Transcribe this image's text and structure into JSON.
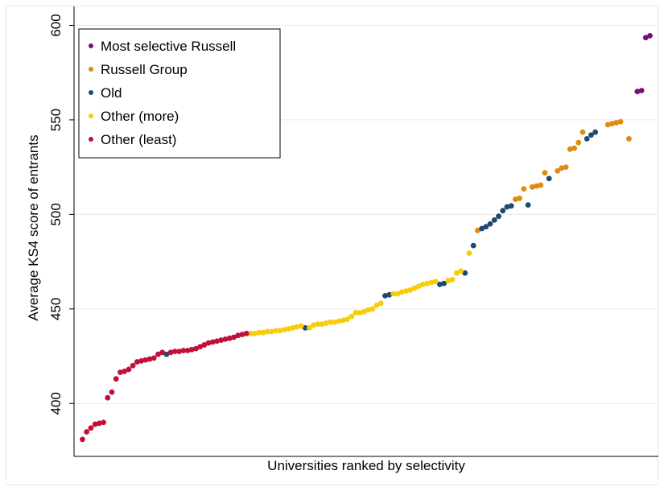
{
  "chart_data": {
    "type": "scatter",
    "xlabel": "Universities ranked by selectivity",
    "ylabel": "Average KS4 score of entrants",
    "ylim": [
      372,
      610
    ],
    "yticks": [
      400,
      450,
      500,
      550,
      600
    ],
    "grid": true,
    "legend_position": "top-left",
    "series": [
      {
        "name": "Most selective Russell",
        "color": "#7b0a7e",
        "x": [
          132,
          133,
          134,
          135
        ],
        "y": [
          565,
          565.5,
          593.5,
          594.5
        ]
      },
      {
        "name": "Russell Group",
        "color": "#e08a10",
        "x": [
          94,
          103,
          104,
          105,
          107,
          108,
          109,
          110,
          113,
          114,
          115,
          116,
          117,
          118,
          119,
          125,
          126,
          127,
          128,
          130
        ],
        "y": [
          491.5,
          508,
          508.5,
          513.5,
          514.5,
          515,
          515.5,
          522,
          523,
          524.5,
          525,
          534.5,
          535,
          538,
          543.5,
          547.5,
          548,
          548.5,
          549,
          540
        ]
      },
      {
        "name": "Old",
        "color": "#1c4a70",
        "x": [
          20,
          53,
          72,
          73,
          85,
          86,
          91,
          93,
          95,
          96,
          97,
          98,
          99,
          100,
          101,
          102,
          106,
          111,
          120,
          121,
          122
        ],
        "y": [
          426,
          440,
          457,
          457.5,
          463,
          463.5,
          469,
          483.5,
          492.5,
          493.5,
          495,
          497,
          499,
          502,
          504,
          504.5,
          505,
          519,
          540,
          542,
          543.5
        ]
      },
      {
        "name": "Other (more)",
        "color": "#f7cd0b",
        "x": [
          40,
          41,
          42,
          43,
          44,
          45,
          46,
          47,
          48,
          49,
          50,
          51,
          52,
          54,
          55,
          56,
          57,
          58,
          59,
          60,
          61,
          62,
          63,
          64,
          65,
          66,
          67,
          68,
          69,
          70,
          71,
          74,
          75,
          76,
          77,
          78,
          79,
          80,
          81,
          82,
          83,
          84,
          87,
          88,
          89,
          90,
          92
        ],
        "y": [
          437,
          437,
          437.5,
          437.5,
          438,
          438,
          438.5,
          438.5,
          439,
          439.5,
          440,
          440.5,
          441,
          440,
          441.5,
          442,
          442,
          442.5,
          443,
          443,
          443.5,
          444,
          444.5,
          446,
          448,
          448,
          448.5,
          449.5,
          450,
          452,
          453,
          458,
          458,
          459,
          459.5,
          460,
          461,
          462,
          463,
          463.5,
          464,
          464.5,
          465,
          465.5,
          469,
          470,
          479.5
        ]
      },
      {
        "name": "Other (least)",
        "color": "#c0103a",
        "x": [
          0,
          1,
          2,
          3,
          4,
          5,
          6,
          7,
          8,
          9,
          10,
          11,
          12,
          13,
          14,
          15,
          16,
          17,
          18,
          19,
          21,
          22,
          23,
          24,
          25,
          26,
          27,
          28,
          29,
          30,
          31,
          32,
          33,
          34,
          35,
          36,
          37,
          38,
          39
        ],
        "y": [
          381,
          385,
          387,
          389,
          389.5,
          390,
          403,
          406,
          413,
          416.5,
          417,
          418,
          420,
          422,
          422.5,
          423,
          423.5,
          424,
          426,
          427,
          427,
          427.5,
          427.5,
          428,
          428,
          428.5,
          429,
          430,
          431,
          432,
          432.5,
          433,
          433.5,
          434,
          434.5,
          435,
          436,
          436.5,
          437
        ]
      }
    ]
  }
}
